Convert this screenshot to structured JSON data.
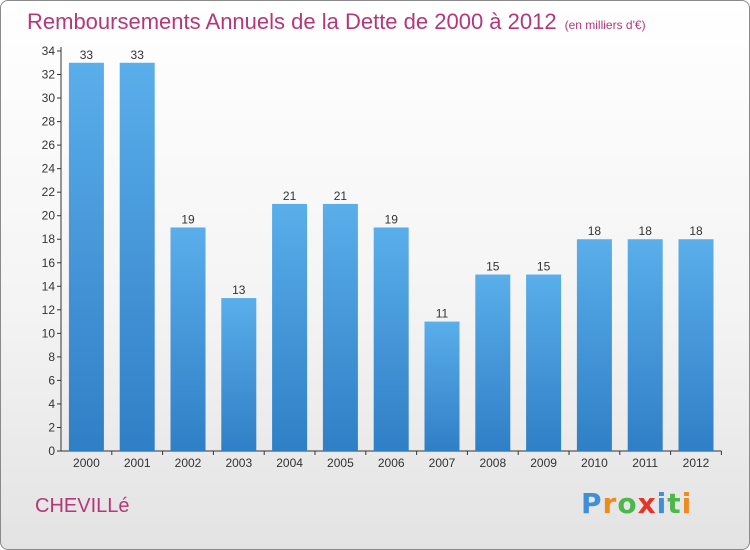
{
  "title": "Remboursements Annuels de la Dette de 2000 à 2012",
  "unit": "(en milliers d'€)",
  "place": "CHEVILLé",
  "logo": {
    "text": "Proxiti",
    "letter_colors": [
      "#3d8fd6",
      "#f08a1c",
      "#4db84a",
      "#e6332a",
      "#3d8fd6",
      "#4db84a",
      "#f08a1c"
    ]
  },
  "colors": {
    "bar_top": "#5aaeea",
    "bar_bottom": "#2f7fc6",
    "title": "#b5377a",
    "axis": "#333333"
  },
  "chart_data": {
    "type": "bar",
    "categories": [
      "2000",
      "2001",
      "2002",
      "2003",
      "2004",
      "2005",
      "2006",
      "2007",
      "2008",
      "2009",
      "2010",
      "2011",
      "2012"
    ],
    "values": [
      33,
      33,
      19,
      13,
      21,
      21,
      19,
      11,
      15,
      15,
      18,
      18,
      18
    ],
    "ylim": [
      0,
      34
    ],
    "yticks": [
      0,
      2,
      4,
      6,
      8,
      10,
      12,
      14,
      16,
      18,
      20,
      22,
      24,
      26,
      28,
      30,
      32,
      34
    ],
    "grid": false,
    "data_labels": true
  }
}
